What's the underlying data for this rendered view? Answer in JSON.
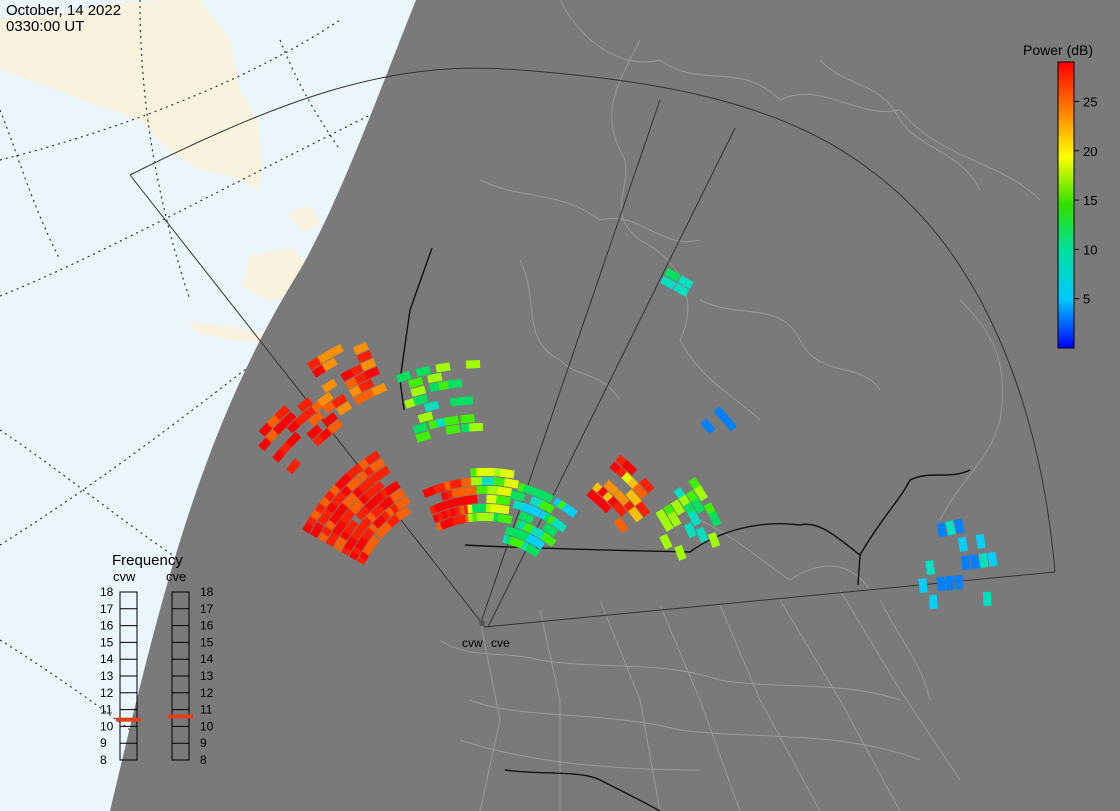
{
  "header": {
    "date": "October, 14 2022",
    "time": "0330:00 UT"
  },
  "colors": {
    "ocean_day": "#eaf5fc",
    "land_day": "#f8f2de",
    "night": "#7a7a7a",
    "fov_line": "#333333",
    "frequency_marker": "#e0401a"
  },
  "chart_data": {
    "type": "heatmap",
    "title": "",
    "colorbar": {
      "label": "Power (dB)",
      "min": 0,
      "max": 29,
      "ticks": [
        5,
        10,
        15,
        20,
        25
      ]
    },
    "radars": [
      {
        "name": "cvw",
        "frequency_mhz": 10.4
      },
      {
        "name": "cve",
        "frequency_mhz": 10.6
      }
    ],
    "frequency_panel": {
      "title": "Frequency",
      "ticks": [
        8,
        9,
        10,
        11,
        12,
        13,
        14,
        15,
        16,
        17,
        18
      ]
    }
  }
}
